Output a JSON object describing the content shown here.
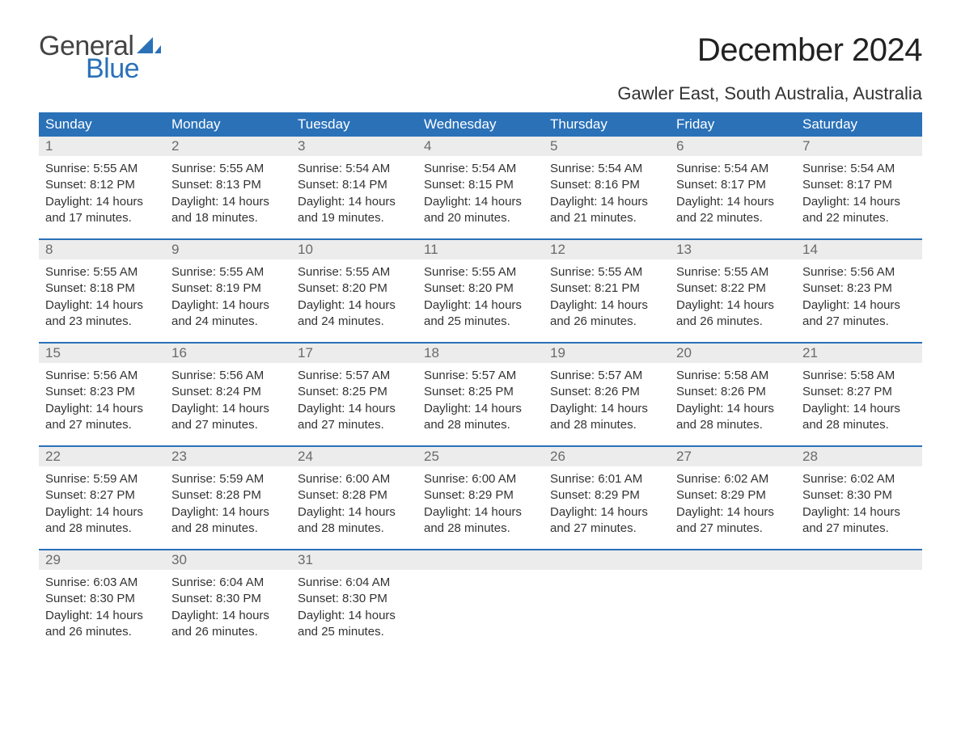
{
  "logo": {
    "text1": "General",
    "text2": "Blue",
    "color_gray": "#444444",
    "color_blue": "#2a71b8"
  },
  "title": "December 2024",
  "location": "Gawler East, South Australia, Australia",
  "colors": {
    "header_bg": "#2a71b8",
    "header_text": "#ffffff",
    "daynum_bg": "#ececec",
    "daynum_text": "#6a6a6a",
    "body_text": "#333333",
    "week_border": "#2a71b8",
    "page_bg": "#ffffff"
  },
  "weekdays": [
    "Sunday",
    "Monday",
    "Tuesday",
    "Wednesday",
    "Thursday",
    "Friday",
    "Saturday"
  ],
  "weeks": [
    [
      {
        "n": "1",
        "lines": [
          "Sunrise: 5:55 AM",
          "Sunset: 8:12 PM",
          "Daylight: 14 hours",
          "and 17 minutes."
        ]
      },
      {
        "n": "2",
        "lines": [
          "Sunrise: 5:55 AM",
          "Sunset: 8:13 PM",
          "Daylight: 14 hours",
          "and 18 minutes."
        ]
      },
      {
        "n": "3",
        "lines": [
          "Sunrise: 5:54 AM",
          "Sunset: 8:14 PM",
          "Daylight: 14 hours",
          "and 19 minutes."
        ]
      },
      {
        "n": "4",
        "lines": [
          "Sunrise: 5:54 AM",
          "Sunset: 8:15 PM",
          "Daylight: 14 hours",
          "and 20 minutes."
        ]
      },
      {
        "n": "5",
        "lines": [
          "Sunrise: 5:54 AM",
          "Sunset: 8:16 PM",
          "Daylight: 14 hours",
          "and 21 minutes."
        ]
      },
      {
        "n": "6",
        "lines": [
          "Sunrise: 5:54 AM",
          "Sunset: 8:17 PM",
          "Daylight: 14 hours",
          "and 22 minutes."
        ]
      },
      {
        "n": "7",
        "lines": [
          "Sunrise: 5:54 AM",
          "Sunset: 8:17 PM",
          "Daylight: 14 hours",
          "and 22 minutes."
        ]
      }
    ],
    [
      {
        "n": "8",
        "lines": [
          "Sunrise: 5:55 AM",
          "Sunset: 8:18 PM",
          "Daylight: 14 hours",
          "and 23 minutes."
        ]
      },
      {
        "n": "9",
        "lines": [
          "Sunrise: 5:55 AM",
          "Sunset: 8:19 PM",
          "Daylight: 14 hours",
          "and 24 minutes."
        ]
      },
      {
        "n": "10",
        "lines": [
          "Sunrise: 5:55 AM",
          "Sunset: 8:20 PM",
          "Daylight: 14 hours",
          "and 24 minutes."
        ]
      },
      {
        "n": "11",
        "lines": [
          "Sunrise: 5:55 AM",
          "Sunset: 8:20 PM",
          "Daylight: 14 hours",
          "and 25 minutes."
        ]
      },
      {
        "n": "12",
        "lines": [
          "Sunrise: 5:55 AM",
          "Sunset: 8:21 PM",
          "Daylight: 14 hours",
          "and 26 minutes."
        ]
      },
      {
        "n": "13",
        "lines": [
          "Sunrise: 5:55 AM",
          "Sunset: 8:22 PM",
          "Daylight: 14 hours",
          "and 26 minutes."
        ]
      },
      {
        "n": "14",
        "lines": [
          "Sunrise: 5:56 AM",
          "Sunset: 8:23 PM",
          "Daylight: 14 hours",
          "and 27 minutes."
        ]
      }
    ],
    [
      {
        "n": "15",
        "lines": [
          "Sunrise: 5:56 AM",
          "Sunset: 8:23 PM",
          "Daylight: 14 hours",
          "and 27 minutes."
        ]
      },
      {
        "n": "16",
        "lines": [
          "Sunrise: 5:56 AM",
          "Sunset: 8:24 PM",
          "Daylight: 14 hours",
          "and 27 minutes."
        ]
      },
      {
        "n": "17",
        "lines": [
          "Sunrise: 5:57 AM",
          "Sunset: 8:25 PM",
          "Daylight: 14 hours",
          "and 27 minutes."
        ]
      },
      {
        "n": "18",
        "lines": [
          "Sunrise: 5:57 AM",
          "Sunset: 8:25 PM",
          "Daylight: 14 hours",
          "and 28 minutes."
        ]
      },
      {
        "n": "19",
        "lines": [
          "Sunrise: 5:57 AM",
          "Sunset: 8:26 PM",
          "Daylight: 14 hours",
          "and 28 minutes."
        ]
      },
      {
        "n": "20",
        "lines": [
          "Sunrise: 5:58 AM",
          "Sunset: 8:26 PM",
          "Daylight: 14 hours",
          "and 28 minutes."
        ]
      },
      {
        "n": "21",
        "lines": [
          "Sunrise: 5:58 AM",
          "Sunset: 8:27 PM",
          "Daylight: 14 hours",
          "and 28 minutes."
        ]
      }
    ],
    [
      {
        "n": "22",
        "lines": [
          "Sunrise: 5:59 AM",
          "Sunset: 8:27 PM",
          "Daylight: 14 hours",
          "and 28 minutes."
        ]
      },
      {
        "n": "23",
        "lines": [
          "Sunrise: 5:59 AM",
          "Sunset: 8:28 PM",
          "Daylight: 14 hours",
          "and 28 minutes."
        ]
      },
      {
        "n": "24",
        "lines": [
          "Sunrise: 6:00 AM",
          "Sunset: 8:28 PM",
          "Daylight: 14 hours",
          "and 28 minutes."
        ]
      },
      {
        "n": "25",
        "lines": [
          "Sunrise: 6:00 AM",
          "Sunset: 8:29 PM",
          "Daylight: 14 hours",
          "and 28 minutes."
        ]
      },
      {
        "n": "26",
        "lines": [
          "Sunrise: 6:01 AM",
          "Sunset: 8:29 PM",
          "Daylight: 14 hours",
          "and 27 minutes."
        ]
      },
      {
        "n": "27",
        "lines": [
          "Sunrise: 6:02 AM",
          "Sunset: 8:29 PM",
          "Daylight: 14 hours",
          "and 27 minutes."
        ]
      },
      {
        "n": "28",
        "lines": [
          "Sunrise: 6:02 AM",
          "Sunset: 8:30 PM",
          "Daylight: 14 hours",
          "and 27 minutes."
        ]
      }
    ],
    [
      {
        "n": "29",
        "lines": [
          "Sunrise: 6:03 AM",
          "Sunset: 8:30 PM",
          "Daylight: 14 hours",
          "and 26 minutes."
        ]
      },
      {
        "n": "30",
        "lines": [
          "Sunrise: 6:04 AM",
          "Sunset: 8:30 PM",
          "Daylight: 14 hours",
          "and 26 minutes."
        ]
      },
      {
        "n": "31",
        "lines": [
          "Sunrise: 6:04 AM",
          "Sunset: 8:30 PM",
          "Daylight: 14 hours",
          "and 25 minutes."
        ]
      },
      {
        "n": "",
        "lines": []
      },
      {
        "n": "",
        "lines": []
      },
      {
        "n": "",
        "lines": []
      },
      {
        "n": "",
        "lines": []
      }
    ]
  ]
}
